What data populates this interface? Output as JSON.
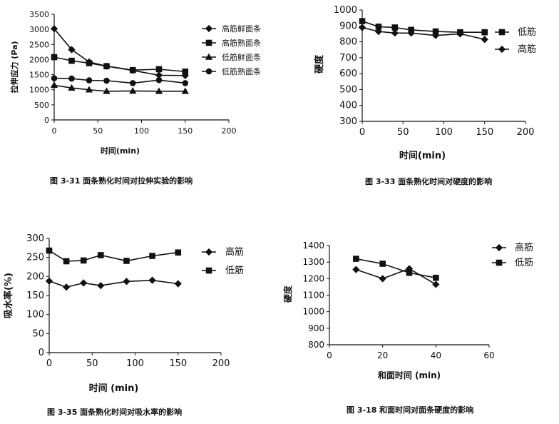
{
  "chart_data": [
    {
      "id": "fig331",
      "type": "line",
      "caption": "图 3-31 面条熟化时间对拉伸实验的影响",
      "xlabel": "时间(min)",
      "ylabel": "拉伸应力 (Pa)",
      "xlim": [
        0,
        200
      ],
      "ylim": [
        0,
        3500
      ],
      "xticks": [
        0,
        50,
        100,
        150,
        200
      ],
      "yticks": [
        0,
        500,
        1000,
        1500,
        2000,
        2500,
        3000,
        3500
      ],
      "x": [
        0,
        20,
        40,
        60,
        90,
        120,
        150
      ],
      "series": [
        {
          "name": "高筋鲜面条",
          "marker": "diamond",
          "values": [
            3020,
            2330,
            1920,
            1780,
            1640,
            1480,
            1470
          ]
        },
        {
          "name": "高筋熟面条",
          "marker": "square",
          "values": [
            2080,
            1960,
            1880,
            1780,
            1650,
            1680,
            1600
          ]
        },
        {
          "name": "低筋鲜面条",
          "marker": "triangle",
          "values": [
            1150,
            1060,
            1000,
            950,
            960,
            950,
            950
          ]
        },
        {
          "name": "低筋熟面条",
          "marker": "circle",
          "values": [
            1380,
            1370,
            1310,
            1300,
            1220,
            1320,
            1220
          ]
        }
      ]
    },
    {
      "id": "fig333",
      "type": "line",
      "caption": "图 3-33 面条熟化时间对硬度的影响",
      "xlabel": "时间(min)",
      "ylabel": "硬度",
      "xlim": [
        0,
        200
      ],
      "ylim": [
        300,
        1000
      ],
      "xticks": [
        0,
        50,
        100,
        150,
        200
      ],
      "yticks": [
        300,
        400,
        500,
        600,
        700,
        800,
        900,
        1000
      ],
      "x": [
        0,
        20,
        40,
        60,
        90,
        120,
        150
      ],
      "series": [
        {
          "name": "低筋",
          "marker": "square",
          "values": [
            930,
            895,
            890,
            875,
            865,
            860,
            860
          ]
        },
        {
          "name": "高筋",
          "marker": "diamond",
          "values": [
            890,
            865,
            855,
            855,
            840,
            850,
            815
          ]
        }
      ]
    },
    {
      "id": "fig335",
      "type": "line",
      "caption": "图 3-35 面条熟化时间对吸水率的影响",
      "xlabel": "时间 (min)",
      "ylabel": "吸水率(%)",
      "xlim": [
        0,
        200
      ],
      "ylim": [
        0,
        300
      ],
      "xticks": [
        0,
        50,
        100,
        150,
        200
      ],
      "yticks": [
        0,
        50,
        100,
        150,
        200,
        250,
        300
      ],
      "x": [
        0,
        20,
        40,
        60,
        90,
        120,
        150
      ],
      "series": [
        {
          "name": "高筋",
          "marker": "diamond",
          "values": [
            188,
            172,
            183,
            176,
            187,
            190,
            181
          ]
        },
        {
          "name": "低筋",
          "marker": "square",
          "values": [
            268,
            240,
            242,
            256,
            241,
            254,
            263
          ]
        }
      ]
    },
    {
      "id": "fig318",
      "type": "line",
      "caption": "图 3-18 和面时间对面条硬度的影响",
      "xlabel": "和面时间 (min)",
      "ylabel": "硬度",
      "xlim": [
        0,
        60
      ],
      "ylim": [
        800,
        1400
      ],
      "xticks": [
        0,
        20,
        40,
        60
      ],
      "yticks": [
        800,
        900,
        1000,
        1100,
        1200,
        1300,
        1400
      ],
      "x": [
        10,
        20,
        30,
        40
      ],
      "series": [
        {
          "name": "高筋",
          "marker": "diamond",
          "values": [
            1255,
            1200,
            1260,
            1165
          ]
        },
        {
          "name": "低筋",
          "marker": "square",
          "values": [
            1320,
            1290,
            1235,
            1205
          ]
        }
      ]
    }
  ]
}
